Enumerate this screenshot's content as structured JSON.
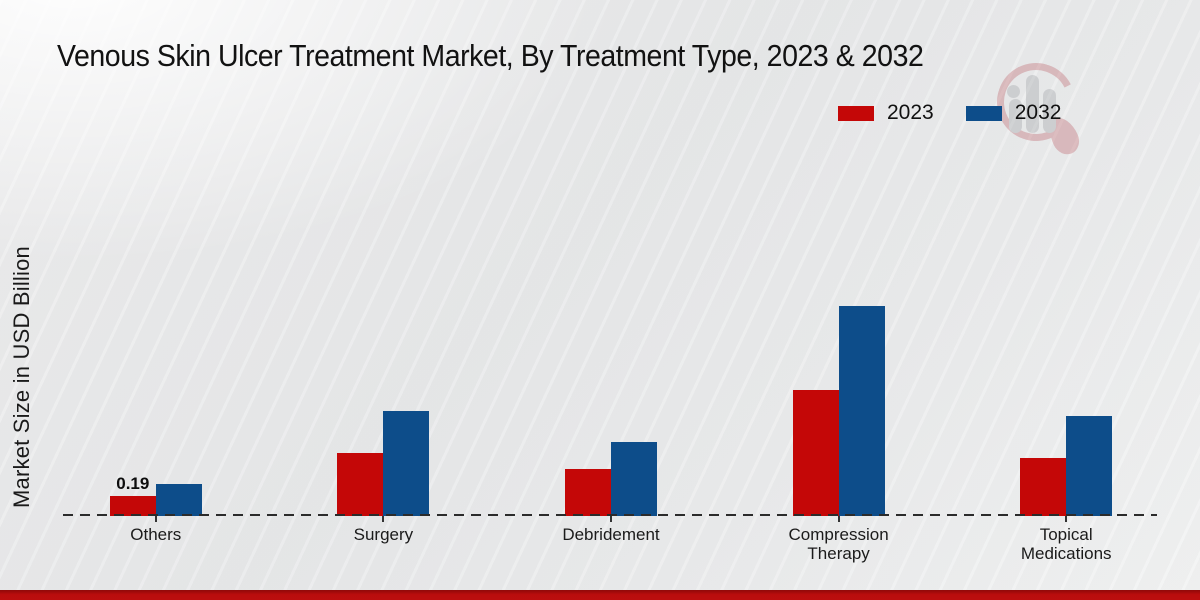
{
  "page": {
    "bottom_bar_color": "#b90d0d",
    "background_color": "#eaebec"
  },
  "chart_data": {
    "type": "bar",
    "title": "Venous Skin Ulcer Treatment Market, By Treatment Type, 2023 & 2032",
    "ylabel": "Market Size in USD Billion",
    "xlabel": "",
    "categories": [
      "Others",
      "Surgery",
      "Debridement",
      "Compression Therapy",
      "Topical Medications"
    ],
    "series": [
      {
        "name": "2023",
        "color": "#c40707",
        "values": [
          0.19,
          0.6,
          0.45,
          1.2,
          0.55
        ]
      },
      {
        "name": "2032",
        "color": "#0d4d8a",
        "values": [
          0.3,
          1.0,
          0.7,
          2.0,
          0.95
        ]
      }
    ],
    "bar_value_labels": [
      {
        "category": "Others",
        "series": "2023",
        "text": "0.19"
      }
    ],
    "units": "USD Billion",
    "ylim": [
      0,
      2.2
    ],
    "grid": false,
    "y_axis_ticks_visible": false,
    "baseline_style": "dashed",
    "legend_position": "top-right"
  },
  "watermark": {
    "name": "market-research-logo"
  }
}
